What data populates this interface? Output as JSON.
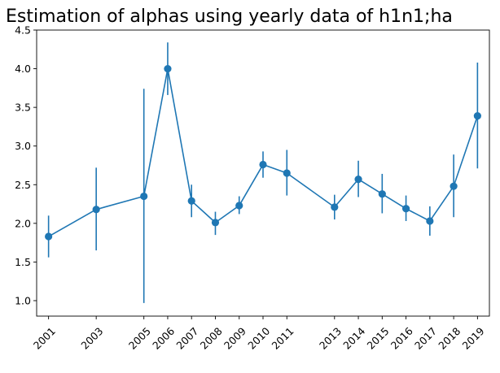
{
  "chart_data": {
    "type": "line",
    "title": "Estimation of alphas using yearly data of h1n1;ha",
    "xlabel": "",
    "ylabel": "",
    "x": [
      2001,
      2003,
      2005,
      2006,
      2007,
      2008,
      2009,
      2010,
      2011,
      2013,
      2014,
      2015,
      2016,
      2017,
      2018,
      2019
    ],
    "xlim": [
      2000.5,
      2019.5
    ],
    "ylim": [
      0.8,
      4.5
    ],
    "y_ticks": [
      1.0,
      1.5,
      2.0,
      2.5,
      3.0,
      3.5,
      4.0,
      4.5
    ],
    "grid": false,
    "legend": "none",
    "color": "#1f77b4",
    "series": [
      {
        "values": [
          1.83,
          2.18,
          2.35,
          4.0,
          2.29,
          2.01,
          2.23,
          2.76,
          2.65,
          2.21,
          2.57,
          2.38,
          2.19,
          2.03,
          2.48,
          3.39
        ],
        "error_low": [
          1.56,
          1.65,
          0.97,
          3.66,
          2.08,
          1.85,
          2.12,
          2.59,
          2.36,
          2.05,
          2.34,
          2.13,
          2.03,
          1.84,
          2.08,
          2.71
        ],
        "error_high": [
          2.1,
          2.72,
          3.74,
          4.34,
          2.5,
          2.15,
          2.35,
          2.93,
          2.95,
          2.37,
          2.81,
          2.64,
          2.36,
          2.22,
          2.89,
          4.08
        ]
      }
    ]
  }
}
